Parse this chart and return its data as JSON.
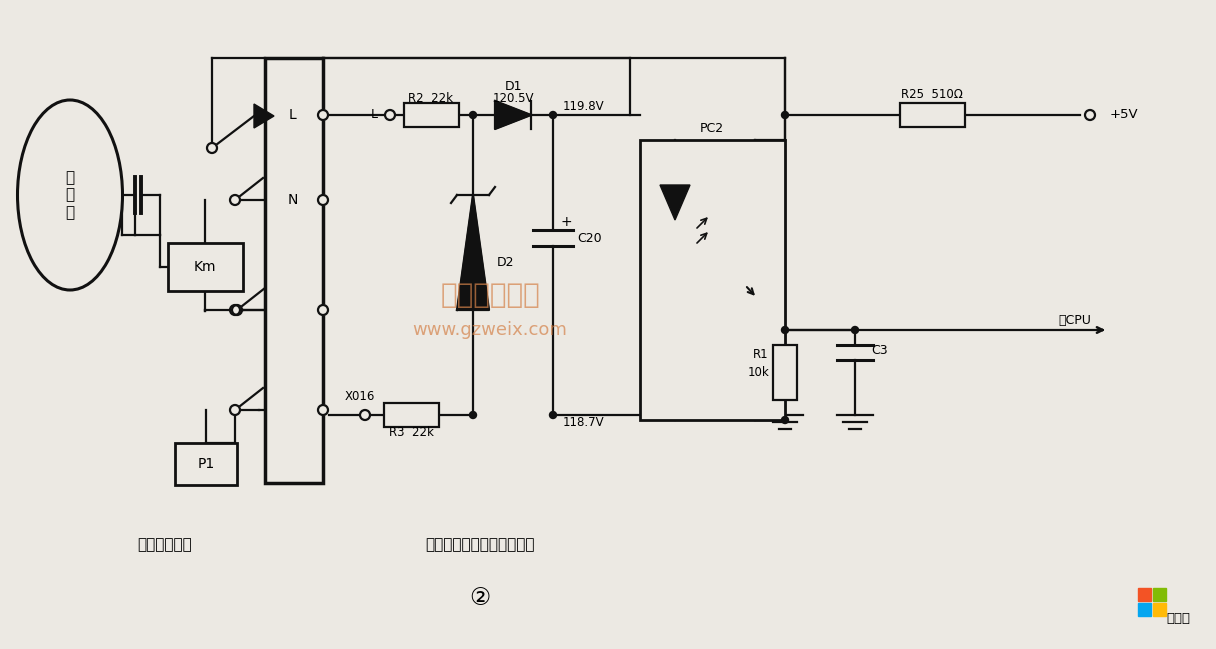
{
  "bg_color": "#ece9e3",
  "line_color": "#111111",
  "watermark_text1": "精通维修下载",
  "watermark_text2": "www.gzweix.com",
  "watermark_color": "#d4824a",
  "title_left": "室外机接线图",
  "title_right": "室内机强电板高压保护电路",
  "circle_num": "②",
  "logo_text": "系统粉",
  "compressor_label": "压\n缩\n机",
  "Km_label": "Km",
  "P1_label": "P1",
  "L_label": "L",
  "N_label": "N",
  "X016_label": "X016",
  "R2_label": "R2  22k",
  "R3_label": "R3  22k",
  "D1_label": "D1",
  "D1_val": "120.5V",
  "D2_label": "D2",
  "C20_label": "C20",
  "C20_plus": "+",
  "v1_label": "119.8V",
  "v2_label": "118.7V",
  "PC2_label": "PC2",
  "R25_label": "R25  510Ω",
  "R1_label": "R1",
  "R1_val": "10k",
  "C3_label": "C3",
  "plus5V_label": "+5V",
  "toCPU_label": "至CPU",
  "L_node_label": "L",
  "watermark_alpha": 0.7
}
